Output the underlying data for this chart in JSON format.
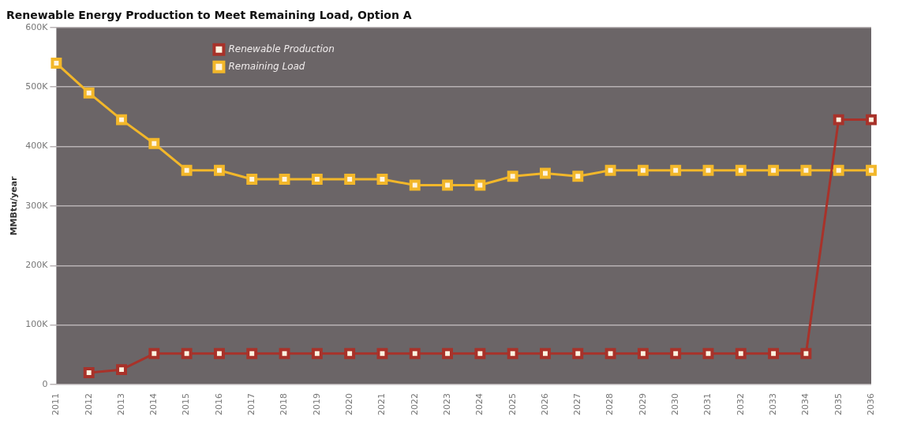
{
  "chart_data": {
    "type": "line",
    "title": "Renewable Energy Production to Meet Remaining Load, Option A",
    "ylabel": "MMBtu/year",
    "categories": [
      "2011",
      "2012",
      "2013",
      "2014",
      "2015",
      "2016",
      "2017",
      "2018",
      "2019",
      "2020",
      "2021",
      "2022",
      "2023",
      "2024",
      "2025",
      "2026",
      "2027",
      "2028",
      "2029",
      "2030",
      "2031",
      "2032",
      "2033",
      "2034",
      "2035",
      "2036"
    ],
    "series": [
      {
        "name": "Renewable Production",
        "color": "#a8322a",
        "values": [
          null,
          20000,
          25000,
          52000,
          52000,
          52000,
          52000,
          52000,
          52000,
          52000,
          52000,
          52000,
          52000,
          52000,
          52000,
          52000,
          52000,
          52000,
          52000,
          52000,
          52000,
          52000,
          52000,
          52000,
          445000,
          445000
        ]
      },
      {
        "name": "Remaining Load",
        "color": "#f2b72a",
        "values": [
          540000,
          490000,
          445000,
          405000,
          360000,
          360000,
          345000,
          345000,
          345000,
          345000,
          345000,
          335000,
          335000,
          335000,
          350000,
          355000,
          350000,
          360000,
          360000,
          360000,
          360000,
          360000,
          360000,
          360000,
          360000,
          360000
        ]
      }
    ],
    "ylim": [
      0,
      600000
    ],
    "yticks": [
      {
        "value": 0,
        "label": "0"
      },
      {
        "value": 100000,
        "label": "100K"
      },
      {
        "value": 200000,
        "label": "200K"
      },
      {
        "value": 300000,
        "label": "300K"
      },
      {
        "value": 400000,
        "label": "400K"
      },
      {
        "value": 500000,
        "label": "500K"
      },
      {
        "value": 600000,
        "label": "600K"
      }
    ],
    "grid": "y",
    "legend": "top left",
    "marker": "square"
  }
}
